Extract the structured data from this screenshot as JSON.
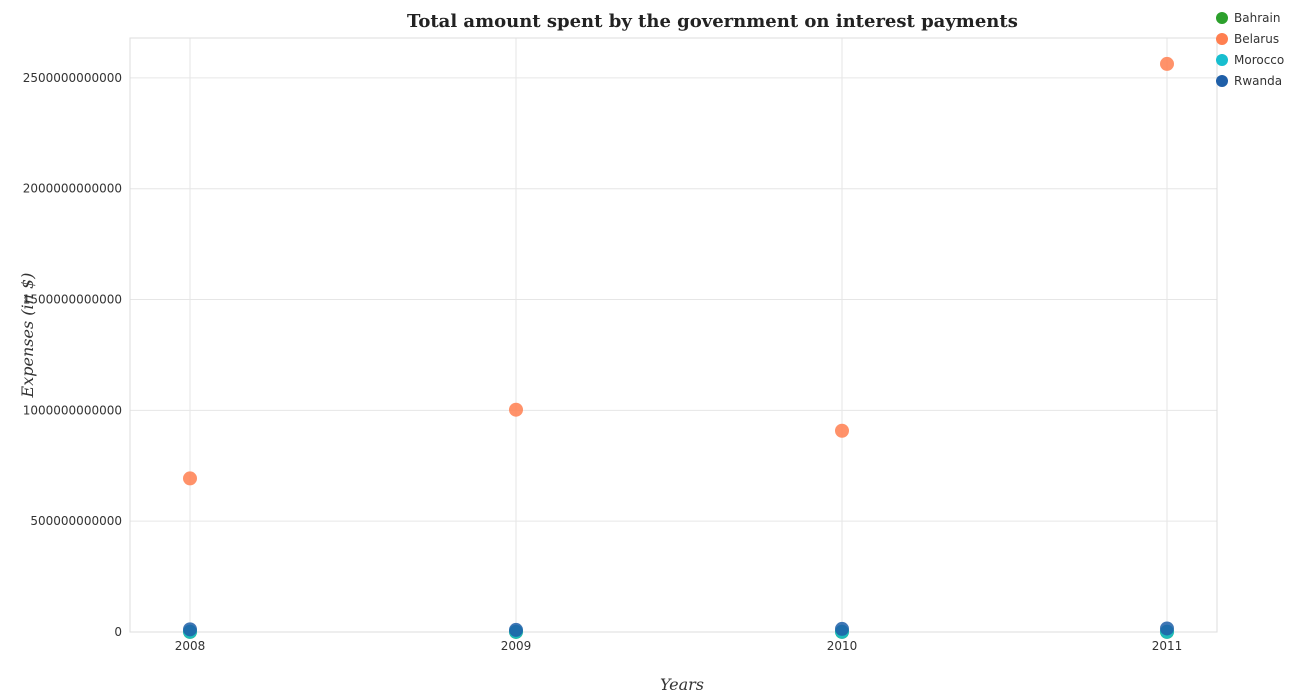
{
  "chart_data": {
    "type": "scatter",
    "title": "Total amount spent by the government on interest payments",
    "xlabel": "Years",
    "ylabel": "Expenses (in $)",
    "categories": [
      "2008",
      "2009",
      "2010",
      "2011"
    ],
    "ylim": [
      0,
      2680000000000
    ],
    "yticks": [
      0,
      500000000000,
      1000000000000,
      1500000000000,
      2000000000000,
      2500000000000
    ],
    "ytick_labels": [
      "0",
      "500000000000",
      "1000000000000",
      "1500000000000",
      "2000000000000",
      "2500000000000"
    ],
    "grid": true,
    "legend_position": "top-right",
    "series": [
      {
        "name": "Bahrain",
        "color": "#2ca02c",
        "values": [
          300000000,
          200000000,
          300000000,
          400000000
        ]
      },
      {
        "name": "Belarus",
        "color": "#ff7f50",
        "values": [
          693000000000,
          1003000000000,
          908000000000,
          2563000000000
        ]
      },
      {
        "name": "Morocco",
        "color": "#17becf",
        "values": [
          1000000000,
          1000000000,
          1000000000,
          1000000000
        ]
      },
      {
        "name": "Rwanda",
        "color": "#1f5fa8",
        "values": [
          12000000000,
          9500000000,
          14000000000,
          16000000000
        ]
      }
    ]
  }
}
